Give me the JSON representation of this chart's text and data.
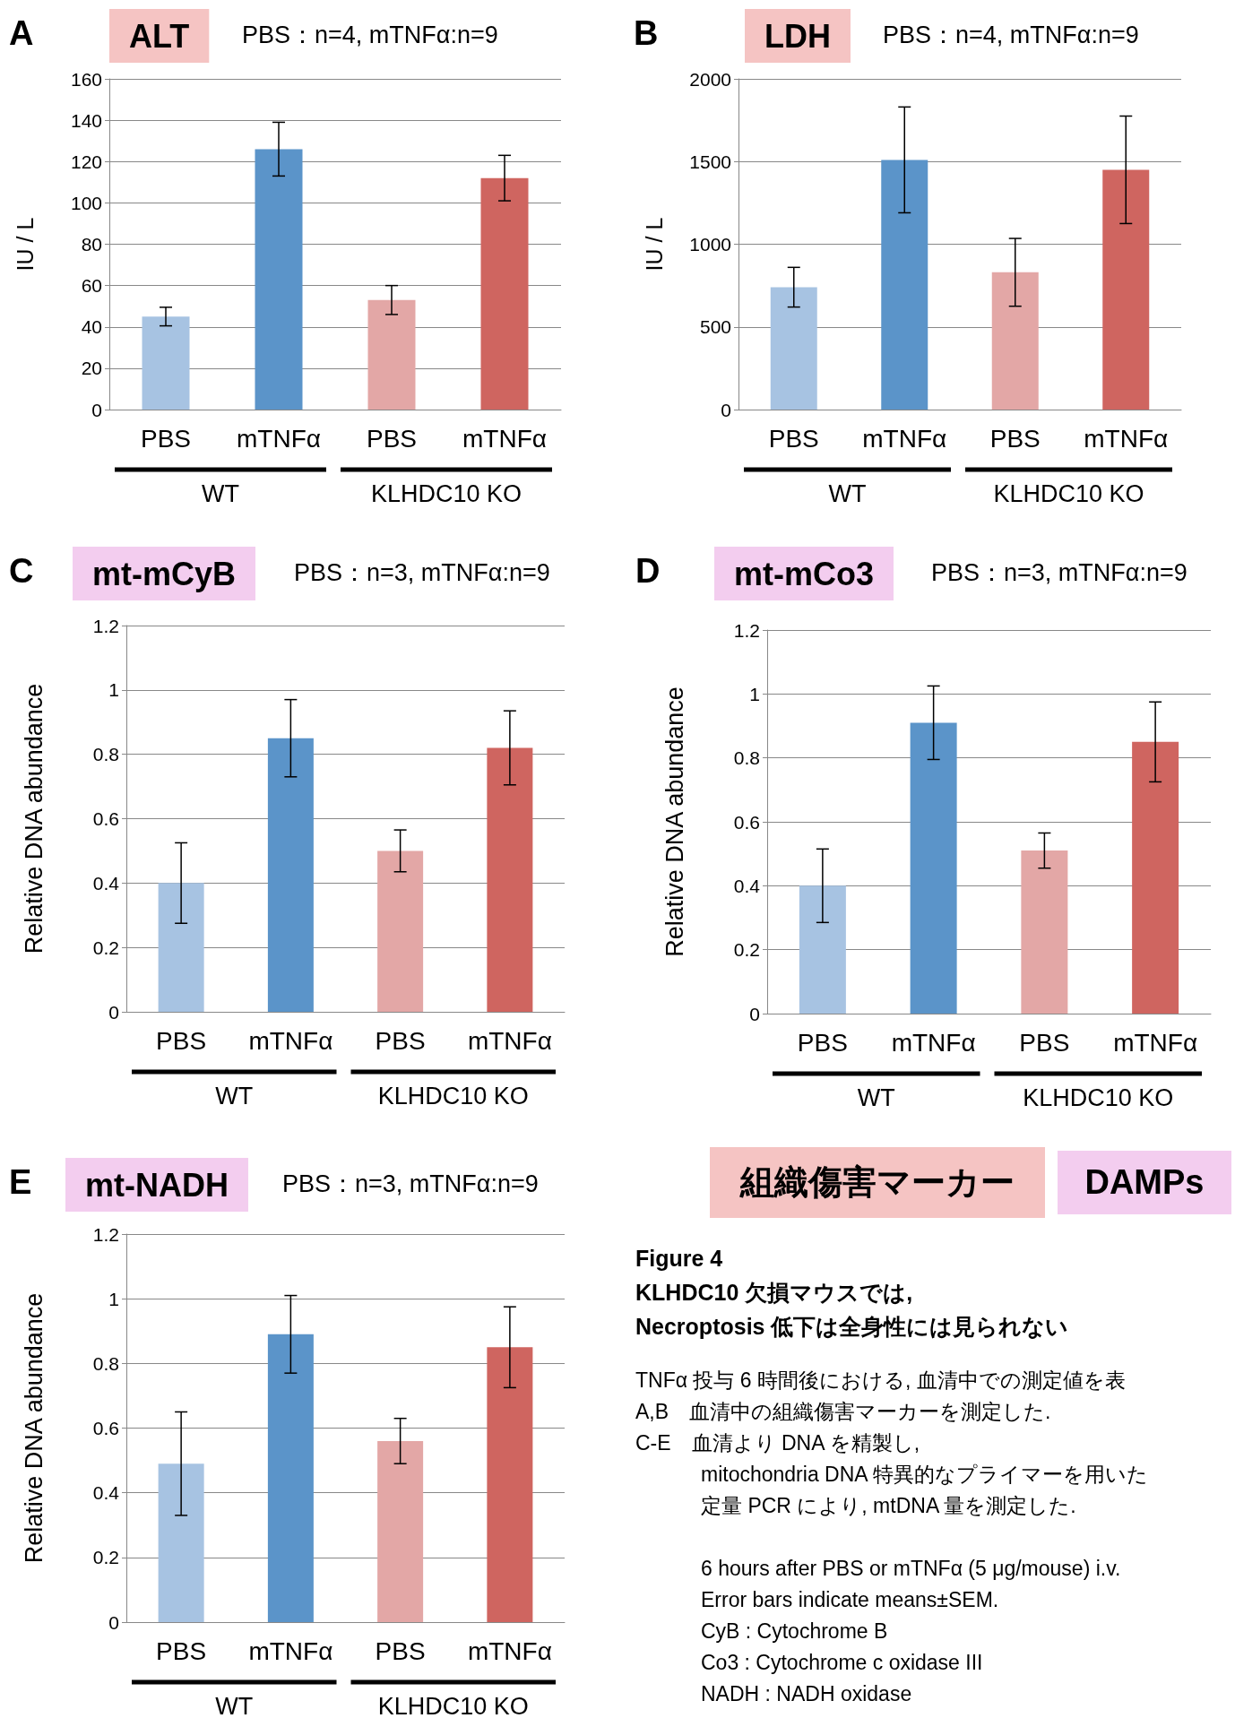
{
  "chart_data": [
    {
      "type": "bar",
      "title": "ALT",
      "subtitle": "PBS：n=4, mTNFα:n=9",
      "ylabel": "IU / L",
      "annotations": [
        "A",
        "WT",
        "KLHDC10 KO"
      ],
      "categories": [
        "PBS",
        "mTNFα",
        "PBS",
        "mTNFα"
      ],
      "values": [
        45,
        126,
        53,
        112
      ],
      "errors": [
        4.5,
        13,
        7,
        11
      ],
      "colors": [
        "#a7c3e2",
        "#5b94c9",
        "#e3a7a6",
        "#cf6560"
      ],
      "ylim": [
        0,
        160
      ],
      "yticks": [
        0,
        20,
        40,
        60,
        80,
        100,
        120,
        140,
        160
      ],
      "grid": "y"
    },
    {
      "type": "bar",
      "title": "LDH",
      "subtitle": "PBS：n=4, mTNFα:n=9",
      "ylabel": "IU / L",
      "annotations": [
        "B",
        "WT",
        "KLHDC10 KO"
      ],
      "categories": [
        "PBS",
        "mTNFα",
        "PBS",
        "mTNFα"
      ],
      "values": [
        740,
        1510,
        830,
        1450
      ],
      "errors": [
        120,
        320,
        205,
        325
      ],
      "colors": [
        "#a7c3e2",
        "#5b94c9",
        "#e3a7a6",
        "#cf6560"
      ],
      "ylim": [
        0,
        2000
      ],
      "yticks": [
        0,
        500,
        1000,
        1500,
        2000
      ],
      "grid": "y"
    },
    {
      "type": "bar",
      "title": "mt-mCyB",
      "subtitle": "PBS：n=3, mTNFα:n=9",
      "ylabel": "Relative DNA abundance",
      "annotations": [
        "C",
        "WT",
        "KLHDC10 KO"
      ],
      "categories": [
        "PBS",
        "mTNFα",
        "PBS",
        "mTNFα"
      ],
      "values": [
        0.4,
        0.85,
        0.5,
        0.82
      ],
      "errors": [
        0.125,
        0.12,
        0.065,
        0.115
      ],
      "colors": [
        "#a7c3e2",
        "#5b94c9",
        "#e3a7a6",
        "#cf6560"
      ],
      "ylim": [
        0,
        1.2
      ],
      "yticks": [
        0,
        0.2,
        0.4,
        0.6,
        0.8,
        1,
        1.2
      ],
      "grid": "y"
    },
    {
      "type": "bar",
      "title": "mt-mCo3",
      "subtitle": "PBS：n=3, mTNFα:n=9",
      "ylabel": "Relative DNA abundance",
      "annotations": [
        "D",
        "WT",
        "KLHDC10 KO"
      ],
      "categories": [
        "PBS",
        "mTNFα",
        "PBS",
        "mTNFα"
      ],
      "values": [
        0.4,
        0.91,
        0.51,
        0.85
      ],
      "errors": [
        0.115,
        0.115,
        0.055,
        0.125
      ],
      "colors": [
        "#a7c3e2",
        "#5b94c9",
        "#e3a7a6",
        "#cf6560"
      ],
      "ylim": [
        0,
        1.2
      ],
      "yticks": [
        0,
        0.2,
        0.4,
        0.6,
        0.8,
        1,
        1.2
      ],
      "grid": "y"
    },
    {
      "type": "bar",
      "title": "mt-NADH",
      "subtitle": "PBS：n=3, mTNFα:n=9",
      "ylabel": "Relative DNA abundance",
      "annotations": [
        "E",
        "WT",
        "KLHDC10 KO"
      ],
      "categories": [
        "PBS",
        "mTNFα",
        "PBS",
        "mTNFα"
      ],
      "values": [
        0.49,
        0.89,
        0.56,
        0.85
      ],
      "errors": [
        0.16,
        0.12,
        0.07,
        0.125
      ],
      "colors": [
        "#a7c3e2",
        "#5b94c9",
        "#e3a7a6",
        "#cf6560"
      ],
      "ylim": [
        0,
        1.2
      ],
      "yticks": [
        0,
        0.2,
        0.4,
        0.6,
        0.8,
        1,
        1.2
      ],
      "grid": "y"
    },
    {
      "type": "other",
      "title": "Figure 4\nKLHDC10 欠損マウスでは,\nNecroptosis 低下は全身性には見られない",
      "annotations": [
        "組織傷害マーカー",
        "DAMPs",
        "TNFα 投与 6 時間後における, 血清中での測定値を表",
        "A,B　血清中の組織傷害マーカーを測定した.",
        "C-E　血清より DNA を精製し,",
        "mitochondria DNA 特異的なプライマーを用いた",
        "定量 PCR により, mtDNA 量を測定した.",
        "6 hours after PBS or mTNFα (5 μg/mouse) i.v.",
        "Error bars indicate means±SEM.",
        "CyB : Cytochrome B",
        "Co3 : Cytochrome c oxidase III",
        "NADH : NADH oxidase"
      ]
    }
  ]
}
